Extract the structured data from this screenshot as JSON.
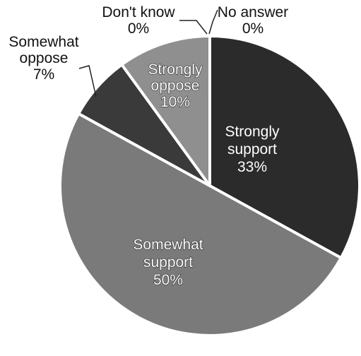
{
  "chart_data": {
    "type": "pie",
    "title": "",
    "start_angle_deg": 0,
    "direction": "clockwise",
    "slices": [
      {
        "label_lines": [
          "Strongly",
          "support",
          "33%"
        ],
        "value": 33,
        "color": "#2b2b2b",
        "label_position": "inside"
      },
      {
        "label_lines": [
          "Somewhat",
          "support",
          "50%"
        ],
        "value": 50,
        "color": "#7a7a7a",
        "label_position": "inside"
      },
      {
        "label_lines": [
          "Somewhat",
          "oppose",
          "7%"
        ],
        "value": 7,
        "color": "#3a3a3a",
        "label_position": "outside"
      },
      {
        "label_lines": [
          "Strongly",
          "oppose",
          "10%"
        ],
        "value": 10,
        "color": "#8f8f8f",
        "label_position": "inside"
      },
      {
        "label_lines": [
          "Don't know",
          "0%"
        ],
        "value": 0,
        "color": "#555555",
        "label_position": "outside"
      },
      {
        "label_lines": [
          "No answer",
          "0%"
        ],
        "value": 0,
        "color": "#555555",
        "label_position": "outside"
      }
    ],
    "slice_border_color": "#ffffff"
  }
}
